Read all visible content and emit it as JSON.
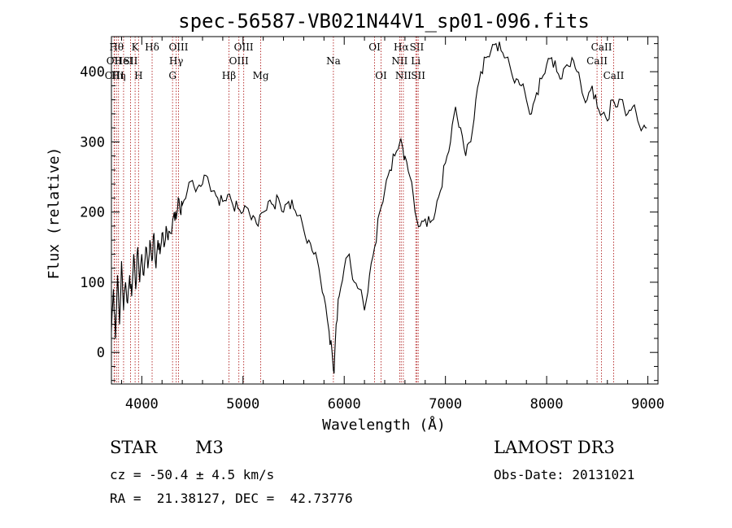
{
  "chart_data": {
    "type": "line",
    "title": "spec-56587-VB021N44V1_sp01-096.fits",
    "xlabel": "Wavelength (Å)",
    "ylabel": "Flux (relative)",
    "xlim": [
      3700,
      9100
    ],
    "ylim": [
      -45,
      450
    ],
    "xticks": [
      4000,
      5000,
      6000,
      7000,
      8000,
      9000
    ],
    "yticks": [
      0,
      100,
      200,
      300,
      400
    ],
    "grid": false,
    "series": [
      {
        "x": [
          3700,
          3720,
          3740,
          3760,
          3780,
          3800,
          3820,
          3840,
          3860,
          3880,
          3900,
          3920,
          3940,
          3960,
          3980,
          4000,
          4020,
          4040,
          4060,
          4080,
          4100,
          4120,
          4140,
          4160,
          4180,
          4200,
          4220,
          4240,
          4260,
          4280,
          4300,
          4320,
          4340,
          4360,
          4380,
          4400,
          4450,
          4500,
          4550,
          4600,
          4650,
          4700,
          4750,
          4800,
          4850,
          4900,
          4950,
          5000,
          5050,
          5100,
          5150,
          5200,
          5250,
          5300,
          5350,
          5400,
          5450,
          5500,
          5550,
          5600,
          5650,
          5700,
          5750,
          5800,
          5850,
          5880,
          5900,
          5920,
          5950,
          6000,
          6050,
          6100,
          6150,
          6200,
          6250,
          6300,
          6350,
          6400,
          6450,
          6500,
          6550,
          6580,
          6600,
          6650,
          6700,
          6750,
          6800,
          6850,
          6900,
          6950,
          7000,
          7050,
          7100,
          7150,
          7200,
          7250,
          7300,
          7350,
          7400,
          7450,
          7500,
          7550,
          7600,
          7650,
          7700,
          7750,
          7800,
          7850,
          7900,
          7950,
          8000,
          8050,
          8100,
          8150,
          8200,
          8250,
          8300,
          8350,
          8400,
          8450,
          8500,
          8550,
          8600,
          8650,
          8700,
          8750,
          8800,
          8850,
          8900,
          8950,
          8990
        ],
        "values": [
          30,
          90,
          20,
          110,
          40,
          130,
          60,
          100,
          70,
          110,
          80,
          140,
          90,
          150,
          100,
          140,
          110,
          150,
          120,
          160,
          130,
          170,
          120,
          160,
          140,
          170,
          150,
          180,
          160,
          170,
          180,
          200,
          190,
          220,
          200,
          210,
          230,
          245,
          235,
          240,
          250,
          230,
          220,
          215,
          225,
          210,
          205,
          200,
          205,
          195,
          180,
          200,
          215,
          210,
          220,
          200,
          215,
          205,
          195,
          175,
          160,
          140,
          120,
          80,
          30,
          0,
          -30,
          40,
          80,
          120,
          140,
          100,
          90,
          60,
          110,
          150,
          200,
          230,
          260,
          280,
          300,
          290,
          280,
          250,
          200,
          180,
          190,
          185,
          200,
          230,
          270,
          300,
          350,
          320,
          280,
          300,
          360,
          400,
          420,
          430,
          440,
          430,
          420,
          400,
          390,
          380,
          360,
          340,
          370,
          390,
          410,
          420,
          400,
          390,
          410,
          420,
          400,
          370,
          360,
          380,
          350,
          340,
          330,
          360,
          350,
          360,
          340,
          350,
          330,
          320,
          320
        ]
      }
    ],
    "lines": [
      {
        "x": 3750,
        "label": "Hθ",
        "row": 1
      },
      {
        "x": 3727,
        "label": "OII",
        "row": 2
      },
      {
        "x": 3770,
        "label": "Hη",
        "row": 3
      },
      {
        "x": 3730,
        "label": "OIII",
        "row": 3
      },
      {
        "x": 3820,
        "label": "HeI",
        "row": 2
      },
      {
        "x": 3889,
        "label": "SII",
        "row": 2
      },
      {
        "x": 3934,
        "label": "K",
        "row": 1
      },
      {
        "x": 3968,
        "label": "H",
        "row": 3
      },
      {
        "x": 4102,
        "label": "Hδ",
        "row": 1
      },
      {
        "x": 4304,
        "label": "G",
        "row": 3
      },
      {
        "x": 4340,
        "label": "Hγ",
        "row": 2
      },
      {
        "x": 4363,
        "label": "OIII",
        "row": 1
      },
      {
        "x": 4861,
        "label": "Hβ",
        "row": 3
      },
      {
        "x": 4959,
        "label": "OIII",
        "row": 2
      },
      {
        "x": 5007,
        "label": "OIII",
        "row": 1
      },
      {
        "x": 5175,
        "label": "Mg",
        "row": 3
      },
      {
        "x": 5893,
        "label": "Na",
        "row": 2
      },
      {
        "x": 6300,
        "label": "OI",
        "row": 1
      },
      {
        "x": 6364,
        "label": "OI",
        "row": 3
      },
      {
        "x": 6548,
        "label": "NII",
        "row": 2
      },
      {
        "x": 6563,
        "label": "Hα",
        "row": 1
      },
      {
        "x": 6584,
        "label": "NII",
        "row": 3
      },
      {
        "x": 6707,
        "label": "Li",
        "row": 2
      },
      {
        "x": 6717,
        "label": "SII",
        "row": 1
      },
      {
        "x": 6731,
        "label": "SII",
        "row": 3
      },
      {
        "x": 8498,
        "label": "CaII",
        "row": 2
      },
      {
        "x": 8542,
        "label": "CaII",
        "row": 1
      },
      {
        "x": 8662,
        "label": "CaII",
        "row": 3
      }
    ]
  },
  "footer": {
    "class": "STAR",
    "subclass": "M3",
    "survey": "LAMOST DR3",
    "cz": "cz = -50.4 ± 4.5 km/s",
    "obsdate": "Obs-Date: 20131021",
    "radec": "RA =  21.38127, DEC =  42.73776"
  }
}
